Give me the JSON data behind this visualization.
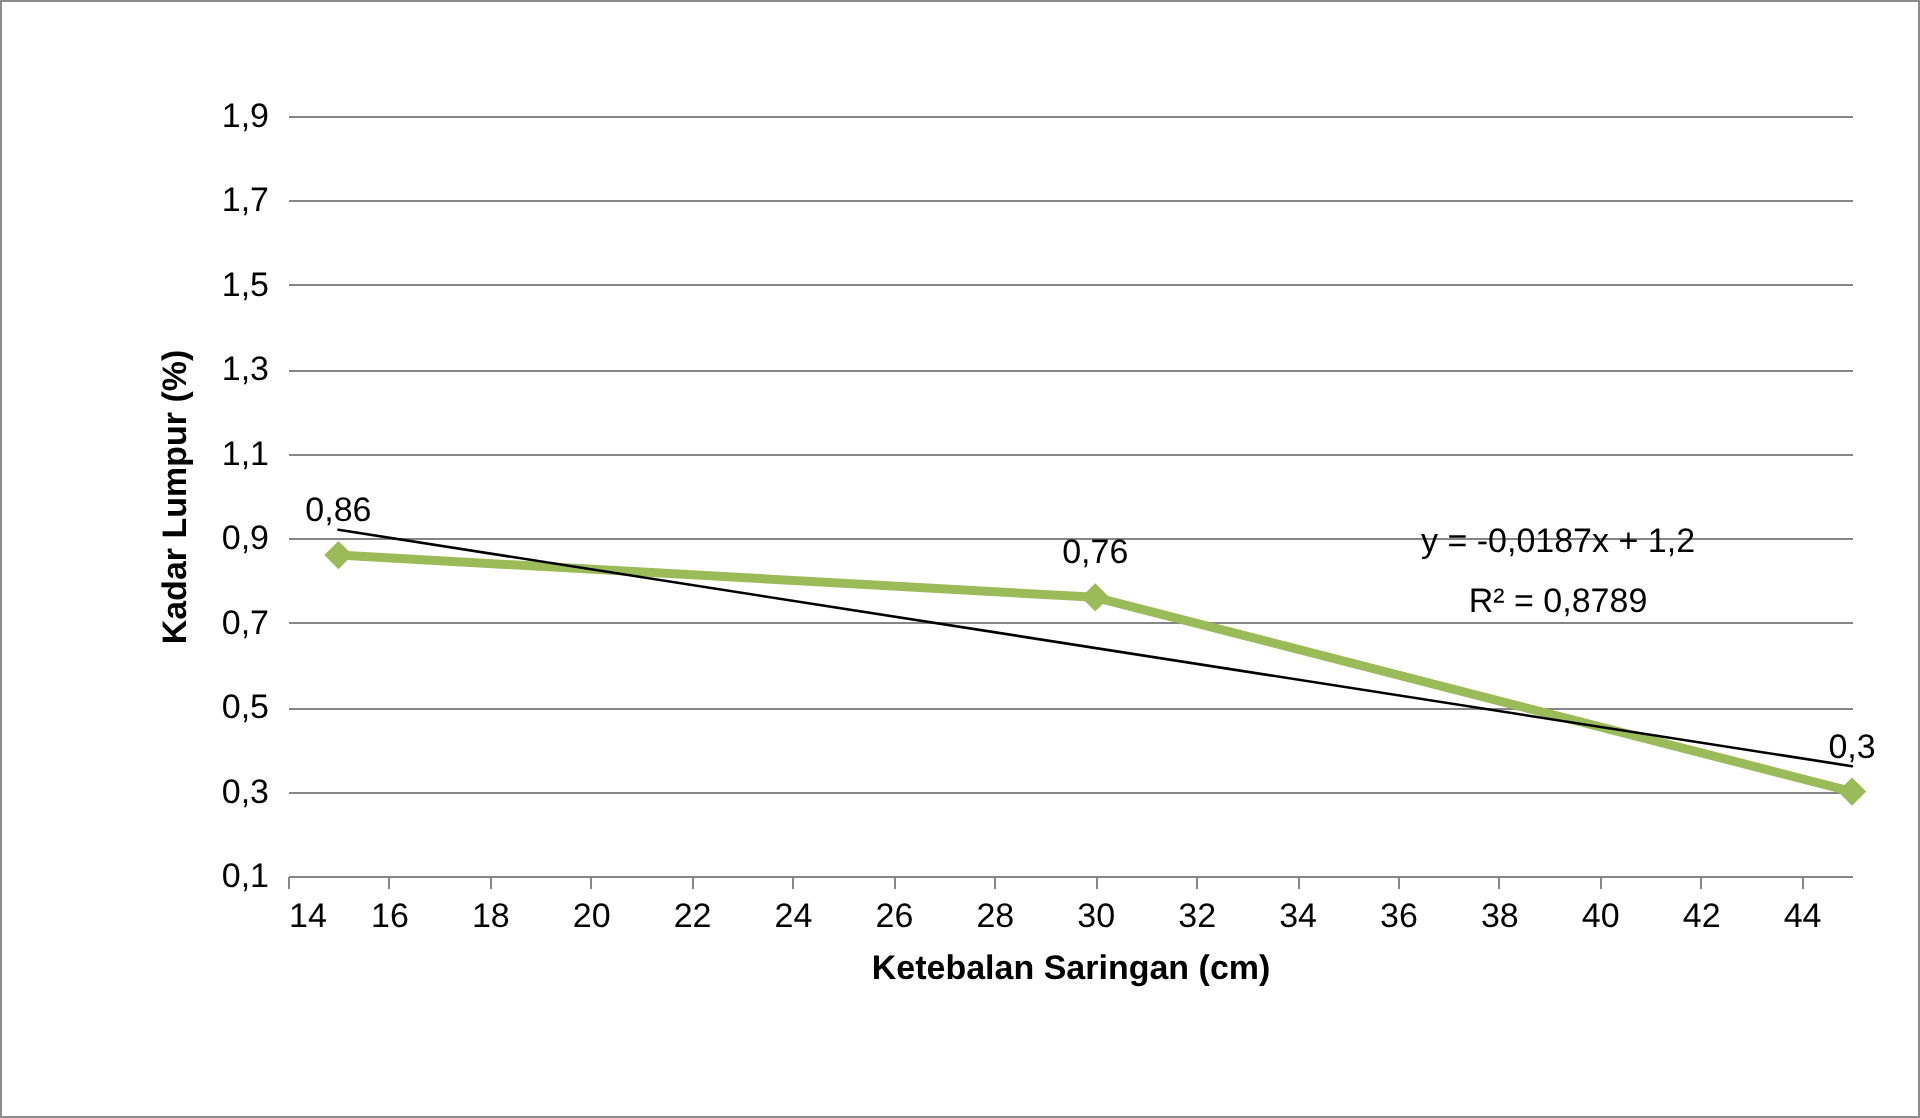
{
  "chart_data": {
    "type": "line",
    "xlabel": "Ketebalan Saringan (cm)",
    "ylabel": "Kadar Lumpur (%)",
    "x": [
      15,
      30,
      45
    ],
    "series": [
      {
        "color": "#9bbb59",
        "values": [
          0.86,
          0.76,
          0.3
        ],
        "value_labels": [
          "0,86",
          "0,76",
          "0,3"
        ],
        "marker": "diamond"
      },
      {
        "color": "#000000",
        "x": [
          15,
          45
        ],
        "values": [
          0.92,
          0.36
        ],
        "marker": "none"
      }
    ],
    "annotations": [
      "y = -0,0187x + 1,2",
      "R² = 0,8789"
    ],
    "xlim": [
      14,
      45
    ],
    "xticks": [
      14,
      16,
      18,
      20,
      22,
      24,
      26,
      28,
      30,
      32,
      34,
      36,
      38,
      40,
      42,
      44
    ],
    "ylim": [
      0.1,
      1.9
    ],
    "yticks": [
      {
        "value": 0.1,
        "label": "0,1"
      },
      {
        "value": 0.3,
        "label": "0,3"
      },
      {
        "value": 0.5,
        "label": "0,5"
      },
      {
        "value": 0.7,
        "label": "0,7"
      },
      {
        "value": 0.9,
        "label": "0,9"
      },
      {
        "value": 1.1,
        "label": "1,1"
      },
      {
        "value": 1.3,
        "label": "1,3"
      },
      {
        "value": 1.5,
        "label": "1,5"
      },
      {
        "value": 1.7,
        "label": "1,7"
      },
      {
        "value": 1.9,
        "label": "1,9"
      }
    ],
    "grid": "y",
    "line_style": "solid"
  }
}
